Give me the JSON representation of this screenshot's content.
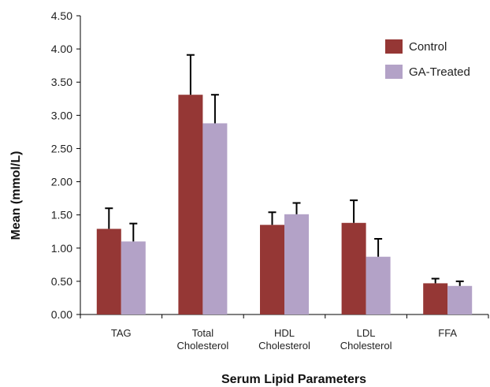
{
  "chart_data": {
    "type": "bar",
    "categories": [
      [
        "TAG"
      ],
      [
        "Total",
        "Cholesterol"
      ],
      [
        "HDL",
        "Cholesterol"
      ],
      [
        "LDL",
        "Cholesterol"
      ],
      [
        "FFA"
      ]
    ],
    "series": [
      {
        "name": "Control",
        "color": "#953735",
        "values": [
          1.29,
          3.31,
          1.35,
          1.38,
          0.47
        ],
        "errors": [
          0.31,
          0.6,
          0.19,
          0.34,
          0.07
        ]
      },
      {
        "name": "GA-Treated",
        "color": "#b3a2c7",
        "values": [
          1.1,
          2.88,
          1.51,
          0.87,
          0.43
        ],
        "errors": [
          0.27,
          0.43,
          0.17,
          0.27,
          0.07
        ]
      }
    ],
    "title": "",
    "xlabel": "Serum Lipid Parameters",
    "ylabel": "Mean (mmol/L)",
    "ylim": [
      0,
      4.5
    ],
    "yticks": [
      "0.00",
      "0.50",
      "1.00",
      "1.50",
      "2.00",
      "2.50",
      "3.00",
      "3.50",
      "4.00",
      "4.50"
    ],
    "grid": false,
    "legend_position": "top-right",
    "error_bars": "positive"
  }
}
